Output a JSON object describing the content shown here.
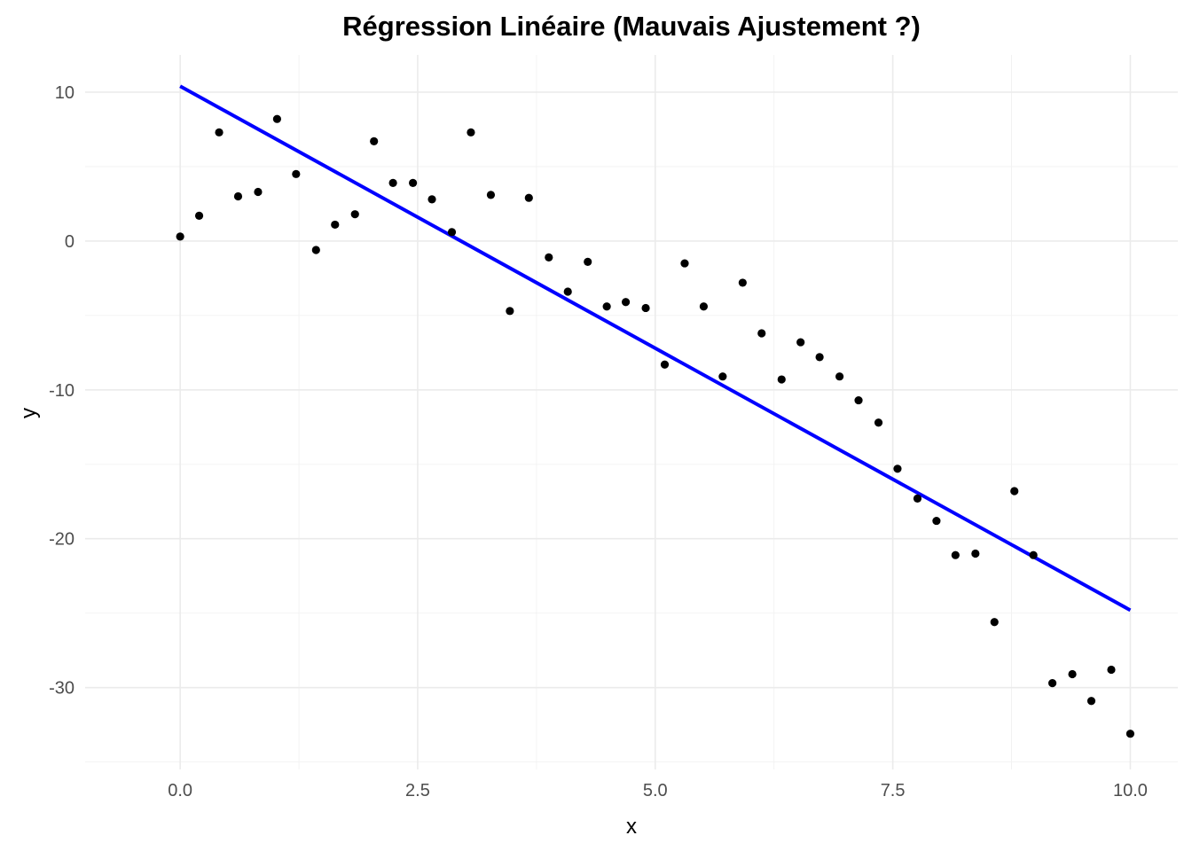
{
  "chart_data": {
    "type": "scatter",
    "title": "Régression Linéaire (Mauvais Ajustement ?)",
    "xlabel": "x",
    "ylabel": "y",
    "xlim": [
      -1,
      10.5
    ],
    "ylim": [
      -35.5,
      12.5
    ],
    "x_ticks": [
      0,
      2.5,
      5,
      7.5,
      10
    ],
    "x_tick_labels": [
      "0.0",
      "2.5",
      "5.0",
      "7.5",
      "10.0"
    ],
    "y_ticks": [
      -30,
      -20,
      -10,
      0,
      10
    ],
    "y_tick_labels": [
      "-30",
      "-20",
      "-10",
      "0",
      "10"
    ],
    "grid": true,
    "legend": "none",
    "point_color": "#000000",
    "line_color": "#0000ff",
    "points": {
      "x": [
        0.0,
        0.2,
        0.41,
        0.61,
        0.82,
        1.02,
        1.22,
        1.43,
        1.63,
        1.84,
        2.04,
        2.24,
        2.45,
        2.65,
        2.86,
        3.06,
        3.27,
        3.47,
        3.67,
        3.88,
        4.08,
        4.29,
        4.49,
        4.69,
        4.9,
        5.1,
        5.31,
        5.51,
        5.71,
        5.92,
        6.12,
        6.33,
        6.53,
        6.73,
        6.94,
        7.14,
        7.35,
        7.55,
        7.76,
        7.96,
        8.16,
        8.37,
        8.57,
        8.78,
        8.98,
        9.18,
        9.39,
        9.59,
        9.8,
        10.0
      ],
      "y": [
        0.3,
        1.7,
        7.3,
        3.0,
        3.3,
        8.2,
        4.5,
        -0.6,
        1.1,
        1.8,
        6.7,
        3.9,
        3.9,
        2.8,
        0.6,
        7.3,
        3.1,
        -4.7,
        2.9,
        -1.1,
        -3.4,
        -1.4,
        -4.4,
        -4.1,
        -4.5,
        -8.3,
        -1.5,
        -4.4,
        -9.1,
        -2.8,
        -6.2,
        -9.3,
        -6.8,
        -7.8,
        -9.1,
        -10.7,
        -12.2,
        -15.3,
        -17.3,
        -18.8,
        -21.1,
        -21.0,
        -25.6,
        -16.8,
        -21.1,
        -29.7,
        -29.1,
        -30.9,
        -28.8,
        -33.1
      ]
    },
    "fit_line": {
      "x": [
        0,
        10
      ],
      "y": [
        10.4,
        -24.8
      ]
    }
  }
}
